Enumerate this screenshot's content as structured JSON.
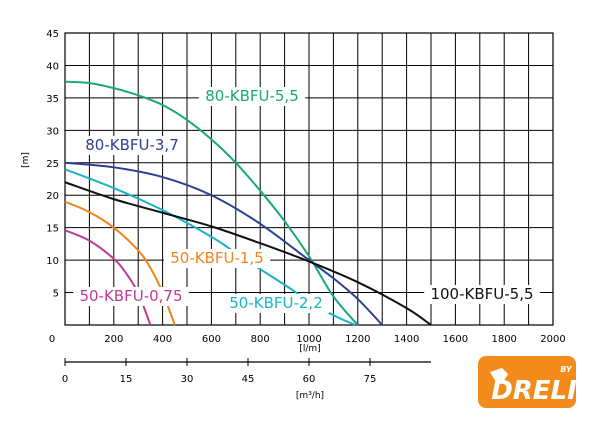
{
  "chart_data": {
    "type": "line",
    "x_axis": {
      "label": "[l/m]",
      "min": 0,
      "max": 2000,
      "ticks": [
        "0",
        "200",
        "400",
        "600",
        "800",
        "1000",
        "1200",
        "1400",
        "1600",
        "1800",
        "2000"
      ]
    },
    "y_axis": {
      "label": "[m]",
      "min": 0,
      "max": 45,
      "ticks": [
        "5",
        "10",
        "15",
        "20",
        "25",
        "30",
        "35",
        "40",
        "45"
      ]
    },
    "x2_axis": {
      "label": "[m³/h]",
      "ticks": [
        "0",
        "15",
        "30",
        "45",
        "60",
        "75"
      ],
      "values": [
        0,
        15,
        30,
        45,
        60,
        75
      ]
    },
    "grid": true,
    "series": [
      {
        "name": "80-KBFU-5,5",
        "color": "#19a878",
        "x": [
          0,
          100,
          200,
          300,
          400,
          500,
          600,
          700,
          800,
          900,
          1000,
          1100,
          1200
        ],
        "y": [
          37.5,
          37.3,
          36.5,
          35.4,
          33.9,
          31.6,
          28.6,
          25.0,
          20.7,
          16.0,
          10.6,
          4.4,
          0
        ]
      },
      {
        "name": "80-KBFU-3,7",
        "color": "#2e3f93",
        "x": [
          0,
          200,
          400,
          600,
          800,
          1000,
          1100,
          1200,
          1300
        ],
        "y": [
          25,
          24.3,
          22.8,
          20.0,
          15.6,
          10.0,
          7.2,
          4.0,
          0
        ]
      },
      {
        "name": "50-KBFU-2,2",
        "color": "#19b3c8",
        "x": [
          0,
          200,
          400,
          600,
          700,
          800,
          900,
          1000,
          1100,
          1190
        ],
        "y": [
          24,
          21.1,
          17.7,
          13.6,
          11.1,
          8.6,
          6.2,
          3.7,
          1.5,
          0
        ]
      },
      {
        "name": "50-KBFU-1,5",
        "color": "#f0841e",
        "x": [
          0,
          100,
          200,
          300,
          350,
          400,
          450
        ],
        "y": [
          19,
          17.4,
          15.0,
          11.5,
          8.8,
          5.0,
          0
        ]
      },
      {
        "name": "50-KBFU-0,75",
        "color": "#c03a94",
        "x": [
          0,
          100,
          200,
          250,
          300,
          350
        ],
        "y": [
          14.6,
          13.0,
          10.2,
          8.0,
          4.9,
          0
        ]
      },
      {
        "name": "100-KBFU-5,5",
        "color": "#111111",
        "x": [
          0,
          200,
          400,
          600,
          800,
          1000,
          1200,
          1400,
          1500
        ],
        "y": [
          22,
          19.4,
          17.3,
          15.2,
          12.6,
          9.8,
          6.6,
          2.6,
          0
        ]
      }
    ]
  },
  "logo": {
    "text": "DRELI",
    "by": "BY"
  }
}
